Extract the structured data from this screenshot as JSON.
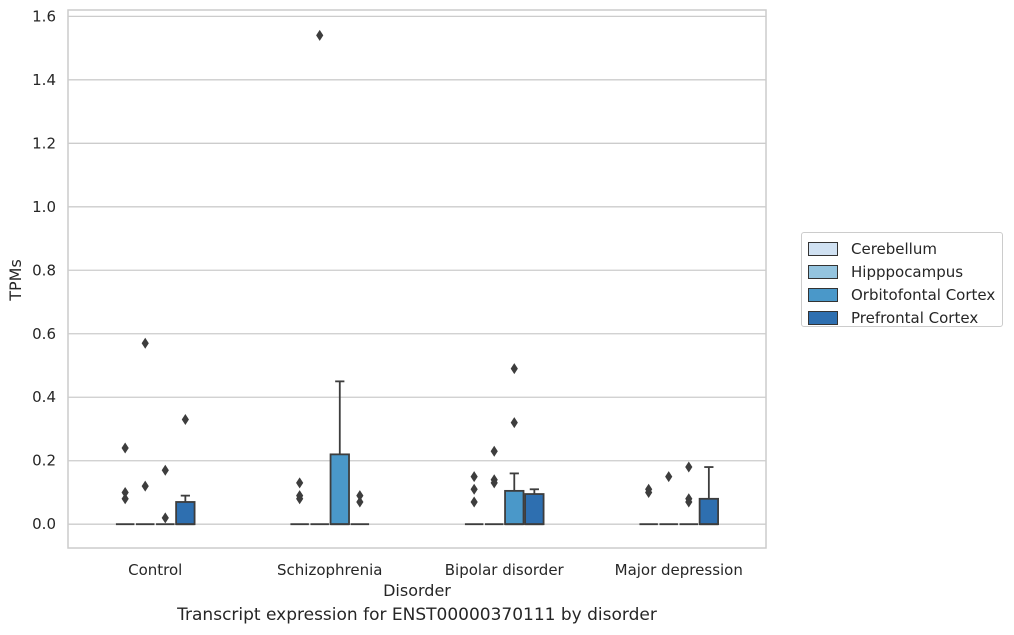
{
  "caption": "Transcript expression for ENST00000370111 by disorder",
  "chart_data": {
    "type": "box",
    "xlabel": "Disorder",
    "ylabel": "TPMs",
    "ylim": [
      -0.075,
      1.62
    ],
    "yticks": [
      0.0,
      0.2,
      0.4,
      0.6,
      0.8,
      1.0,
      1.2,
      1.4,
      1.6
    ],
    "ytick_labels": [
      "0.0",
      "0.2",
      "0.4",
      "0.6",
      "0.8",
      "1.0",
      "1.2",
      "1.4",
      "1.6"
    ],
    "grid": true,
    "legend_placement": "right",
    "categories": [
      "Control",
      "Schizophrenia",
      "Bipolar disorder",
      "Major depression"
    ],
    "series": [
      {
        "name": "Cerebellum",
        "color": "#d0e1f2",
        "boxes": [
          {
            "q1": 0,
            "median": 0,
            "q3": 0,
            "whisker_low": 0,
            "whisker_high": 0,
            "outliers": [
              0.24,
              0.1,
              0.08
            ]
          },
          {
            "q1": 0,
            "median": 0,
            "q3": 0,
            "whisker_low": 0,
            "whisker_high": 0,
            "outliers": [
              0.13,
              0.09,
              0.08
            ]
          },
          {
            "q1": 0,
            "median": 0,
            "q3": 0,
            "whisker_low": 0,
            "whisker_high": 0,
            "outliers": [
              0.15,
              0.11,
              0.07
            ]
          },
          {
            "q1": 0,
            "median": 0,
            "q3": 0,
            "whisker_low": 0,
            "whisker_high": 0,
            "outliers": [
              0.11,
              0.1
            ]
          }
        ]
      },
      {
        "name": "Hipppocampus",
        "color": "#94c4df",
        "boxes": [
          {
            "q1": 0,
            "median": 0,
            "q3": 0,
            "whisker_low": 0,
            "whisker_high": 0,
            "outliers": [
              0.57,
              0.12
            ]
          },
          {
            "q1": 0,
            "median": 0,
            "q3": 0,
            "whisker_low": 0,
            "whisker_high": 0,
            "outliers": [
              1.54
            ]
          },
          {
            "q1": 0,
            "median": 0,
            "q3": 0,
            "whisker_low": 0,
            "whisker_high": 0,
            "outliers": [
              0.23,
              0.14,
              0.13
            ]
          },
          {
            "q1": 0,
            "median": 0,
            "q3": 0,
            "whisker_low": 0,
            "whisker_high": 0,
            "outliers": [
              0.15
            ]
          }
        ]
      },
      {
        "name": "Orbitofontal Cortex",
        "color": "#4a98c9",
        "boxes": [
          {
            "q1": 0,
            "median": 0,
            "q3": 0,
            "whisker_low": 0,
            "whisker_high": 0,
            "outliers": [
              0.17,
              0.02
            ]
          },
          {
            "q1": 0,
            "median": 0,
            "q3": 0.22,
            "whisker_low": 0,
            "whisker_high": 0.45,
            "outliers": []
          },
          {
            "q1": 0,
            "median": 0,
            "q3": 0.105,
            "whisker_low": 0,
            "whisker_high": 0.16,
            "outliers": [
              0.49,
              0.32
            ]
          },
          {
            "q1": 0,
            "median": 0,
            "q3": 0,
            "whisker_low": 0,
            "whisker_high": 0,
            "outliers": [
              0.18,
              0.08,
              0.07
            ]
          }
        ]
      },
      {
        "name": "Prefrontal Cortex",
        "color": "#2e6fb0",
        "boxes": [
          {
            "q1": 0,
            "median": 0,
            "q3": 0.07,
            "whisker_low": 0,
            "whisker_high": 0.09,
            "outliers": [
              0.33
            ]
          },
          {
            "q1": 0,
            "median": 0,
            "q3": 0,
            "whisker_low": 0,
            "whisker_high": 0,
            "outliers": [
              0.09,
              0.07
            ]
          },
          {
            "q1": 0,
            "median": 0,
            "q3": 0.095,
            "whisker_low": 0,
            "whisker_high": 0.11,
            "outliers": []
          },
          {
            "q1": 0,
            "median": 0,
            "q3": 0.08,
            "whisker_low": 0,
            "whisker_high": 0.18,
            "outliers": []
          }
        ]
      }
    ]
  }
}
